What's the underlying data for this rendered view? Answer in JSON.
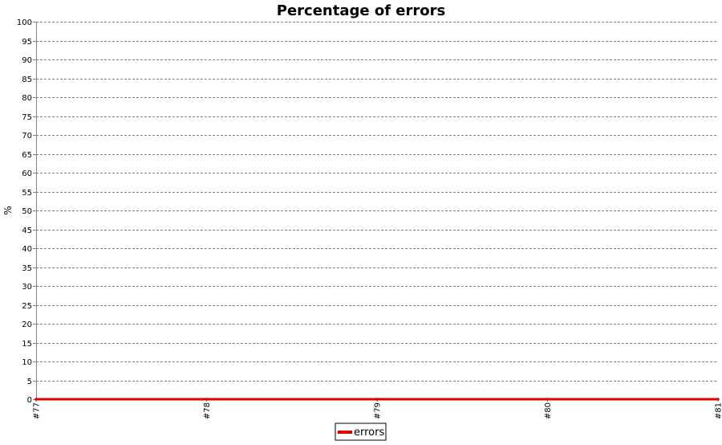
{
  "chart_data": {
    "type": "line",
    "title": "Percentage of errors",
    "xlabel": "",
    "ylabel": "%",
    "categories": [
      "#77",
      "#78",
      "#79",
      "#80",
      "#81"
    ],
    "series": [
      {
        "name": "errors",
        "values": [
          0,
          0,
          0,
          0,
          0
        ],
        "color": "#e00000"
      }
    ],
    "ylim": [
      0,
      100
    ],
    "ystep": 5,
    "grid": true,
    "legend_position": "bottom-center"
  }
}
